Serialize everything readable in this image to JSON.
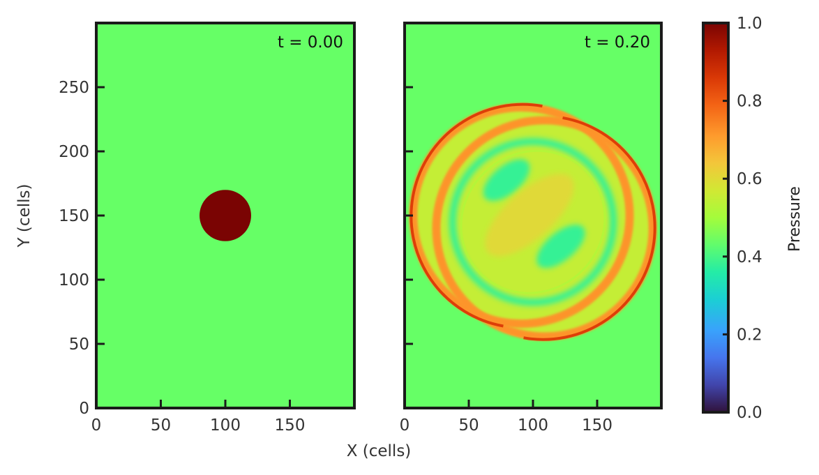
{
  "chart_data": {
    "type": "heatmap",
    "title": "",
    "xlabel": "X (cells)",
    "ylabel": "Y (cells)",
    "colorbar_label": "Pressure",
    "colormap": "turbo",
    "clim": [
      0.0,
      1.0
    ],
    "colorbar_ticks": [
      "0.0",
      "0.2",
      "0.4",
      "0.6",
      "0.8",
      "1.0"
    ],
    "grid_shape_cells": [
      200,
      300
    ],
    "xlim": [
      0,
      200
    ],
    "ylim": [
      0,
      300
    ],
    "x_ticks": [
      "0",
      "50",
      "100",
      "150"
    ],
    "y_ticks": [
      "0",
      "50",
      "100",
      "150",
      "200",
      "250"
    ],
    "background_pressure": 0.5,
    "panels": [
      {
        "time_label": "t = 0.00",
        "description_values": {
          "disk_center_cells": [
            100,
            150
          ],
          "disk_radius_cells": 20,
          "disk_pressure": 1.0
        }
      },
      {
        "time_label": "t = 0.20",
        "description_values": {
          "outer_front_centers_cells": [
            [
              91,
              150
            ],
            [
              109,
              140
            ]
          ],
          "outer_front_radius_cells": 87,
          "peak_front_pressure": 0.85,
          "min_pressure": 0.38,
          "core_pressure": 0.6
        }
      }
    ]
  },
  "colors": {
    "frame": "#1a1a1a",
    "tick": "#1a1a1a",
    "background_green": "#66ff66",
    "disk_red": "#7a0403"
  }
}
